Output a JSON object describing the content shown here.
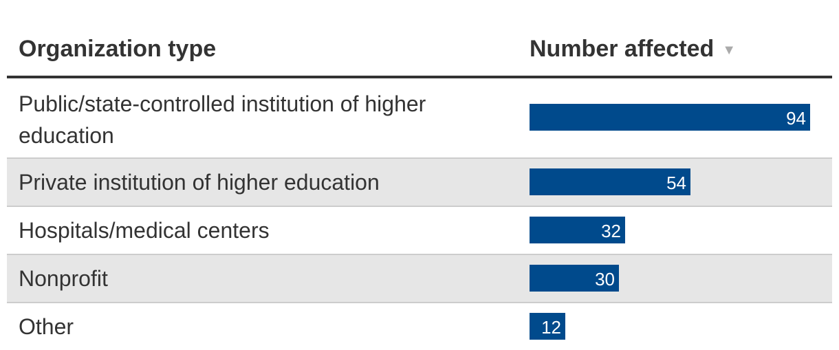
{
  "table": {
    "headers": {
      "org_type": "Organization type",
      "number_affected": "Number affected",
      "sort_indicator_icon": "sort-descending-icon"
    }
  },
  "chart_data": {
    "type": "bar",
    "orientation": "horizontal",
    "categories": [
      "Public/state-controlled institution of higher education",
      "Private institution of higher education",
      "Hospitals/medical centers",
      "Nonprofit",
      "Other"
    ],
    "values": [
      94,
      54,
      32,
      30,
      12
    ],
    "value_labels": [
      "94",
      "54",
      "32",
      "30",
      "12"
    ],
    "xlabel": "Number affected",
    "ylabel": "Organization type",
    "xlim": [
      0,
      94
    ],
    "bar_color": "#004a8c",
    "stripe_color": "#e6e6e6"
  }
}
